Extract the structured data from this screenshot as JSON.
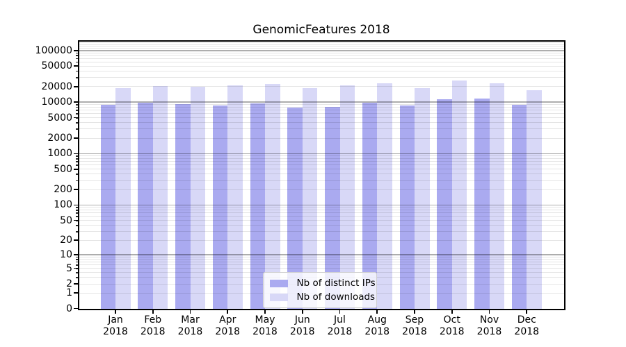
{
  "title": "GenomicFeatures 2018",
  "chart_data": {
    "type": "bar",
    "title": "GenomicFeatures 2018",
    "categories": [
      "Jan 2018",
      "Feb 2018",
      "Mar 2018",
      "Apr 2018",
      "May 2018",
      "Jun 2018",
      "Jul 2018",
      "Aug 2018",
      "Sep 2018",
      "Oct 2018",
      "Nov 2018",
      "Dec 2018"
    ],
    "series": [
      {
        "name": "Nb of distinct IPs",
        "color": "#aaaaf0",
        "values": [
          9000,
          9800,
          9200,
          8700,
          9300,
          7900,
          8100,
          9700,
          8700,
          11300,
          11900,
          8800
        ]
      },
      {
        "name": "Nb of downloads",
        "color": "#d8d8f7",
        "values": [
          18800,
          20600,
          19800,
          21100,
          22600,
          18600,
          21300,
          23300,
          18700,
          26600,
          23100,
          17000
        ]
      }
    ],
    "xlabel": "",
    "ylabel": "",
    "yscale": "log10(1+v)",
    "yticks": [
      0,
      1,
      2,
      5,
      10,
      20,
      50,
      100,
      200,
      500,
      1000,
      2000,
      5000,
      10000,
      20000,
      50000,
      100000
    ],
    "ylim": [
      0,
      148000
    ],
    "grid": true,
    "legend_position": "lower center"
  }
}
